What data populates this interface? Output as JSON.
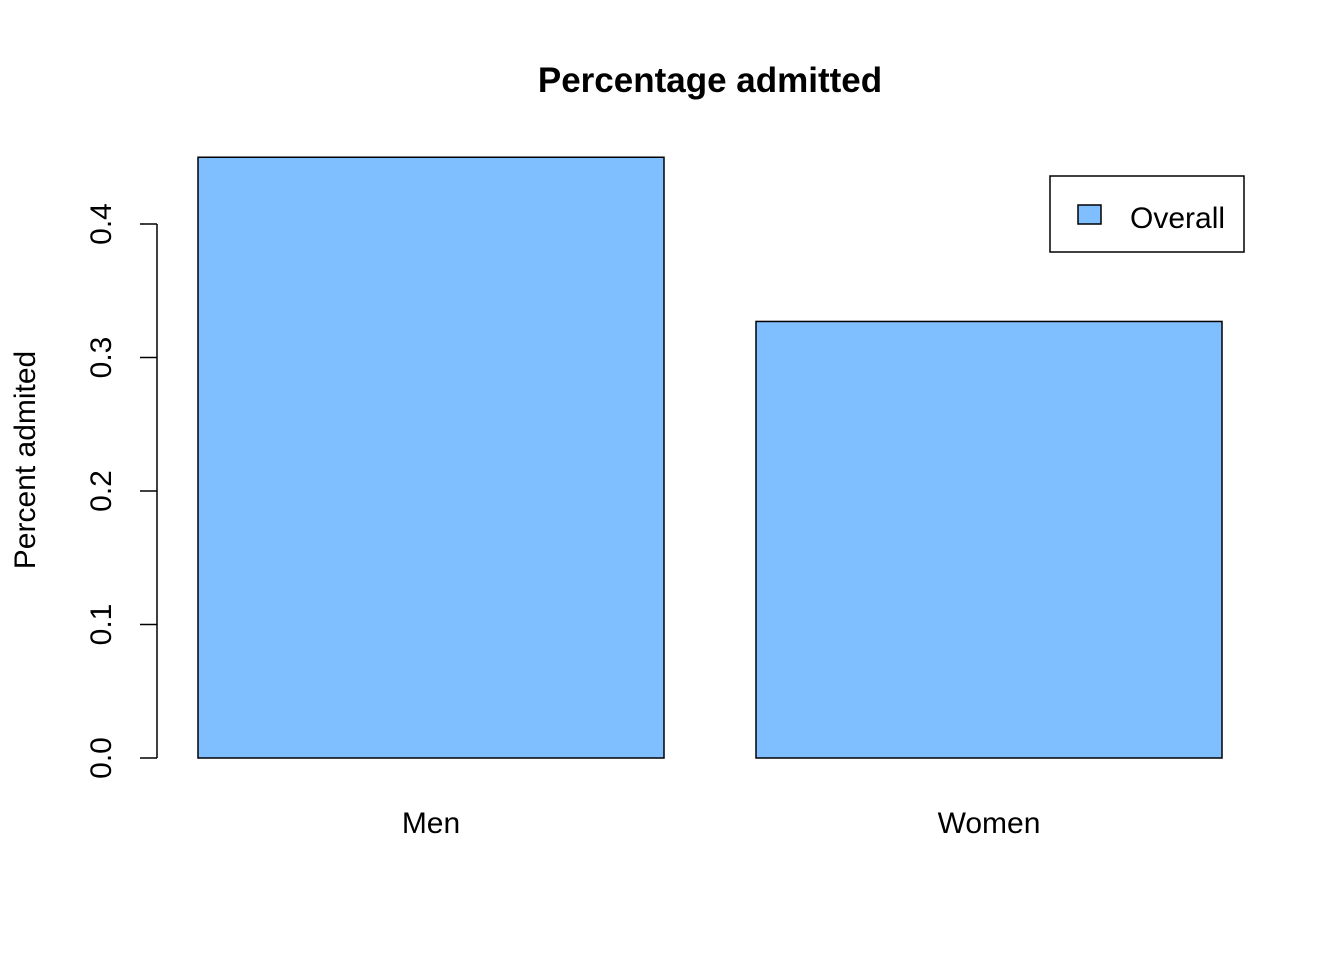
{
  "chart_data": {
    "type": "bar",
    "title": "Percentage admitted",
    "xlabel": "",
    "ylabel": "Percent admited",
    "categories": [
      "Men",
      "Women"
    ],
    "series": [
      {
        "name": "Overall",
        "values": [
          0.45,
          0.327
        ],
        "color": "#80bfff"
      }
    ],
    "ylim": [
      0,
      0.4
    ],
    "yticks": [
      0.0,
      0.1,
      0.2,
      0.3,
      0.4
    ],
    "ytick_labels": [
      "0.0",
      "0.1",
      "0.2",
      "0.3",
      "0.4"
    ],
    "grid": false,
    "legend": {
      "position": "top-right",
      "entries": [
        "Overall"
      ]
    }
  }
}
